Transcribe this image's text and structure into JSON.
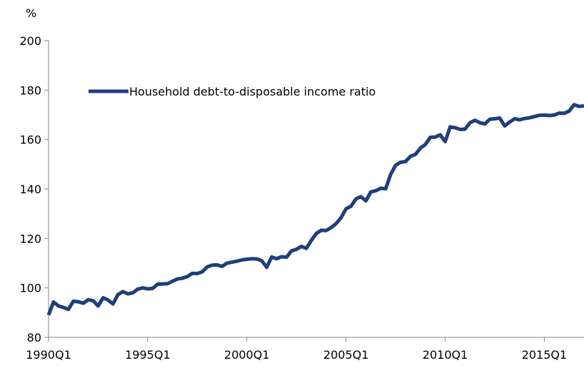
{
  "chart_data": {
    "type": "line",
    "title": "",
    "xlabel": "",
    "ylabel": "%",
    "ylim": [
      80,
      200
    ],
    "yticks": [
      80,
      100,
      120,
      140,
      160,
      180,
      200
    ],
    "x_tick_labels": [
      "1990Q1",
      "1995Q1",
      "2000Q1",
      "2005Q1",
      "2010Q1",
      "2015Q1"
    ],
    "x_tick_years": [
      1990,
      1995,
      2000,
      2005,
      2010,
      2015
    ],
    "xlim": [
      1990.0,
      2017.0
    ],
    "grid": false,
    "legend_placement": "top-left",
    "series": [
      {
        "name": "Household debt-to-disposable income ratio",
        "color": "#1f3f7a",
        "x": [
          1990.0,
          1990.25,
          1990.5,
          1990.75,
          1991.0,
          1991.25,
          1991.5,
          1991.75,
          1992.0,
          1992.25,
          1992.5,
          1992.75,
          1993.0,
          1993.25,
          1993.5,
          1993.75,
          1994.0,
          1994.25,
          1994.5,
          1994.75,
          1995.0,
          1995.25,
          1995.5,
          1995.75,
          1996.0,
          1996.25,
          1996.5,
          1996.75,
          1997.0,
          1997.25,
          1997.5,
          1997.75,
          1998.0,
          1998.25,
          1998.5,
          1998.75,
          1999.0,
          1999.25,
          1999.5,
          1999.75,
          2000.0,
          2000.25,
          2000.5,
          2000.75,
          2001.0,
          2001.25,
          2001.5,
          2001.75,
          2002.0,
          2002.25,
          2002.5,
          2002.75,
          2003.0,
          2003.25,
          2003.5,
          2003.75,
          2004.0,
          2004.25,
          2004.5,
          2004.75,
          2005.0,
          2005.25,
          2005.5,
          2005.75,
          2006.0,
          2006.25,
          2006.5,
          2006.75,
          2007.0,
          2007.25,
          2007.5,
          2007.75,
          2008.0,
          2008.25,
          2008.5,
          2008.75,
          2009.0,
          2009.25,
          2009.5,
          2009.75,
          2010.0,
          2010.25,
          2010.5,
          2010.75,
          2011.0,
          2011.25,
          2011.5,
          2011.75,
          2012.0,
          2012.25,
          2012.5,
          2012.75,
          2013.0,
          2013.25,
          2013.5,
          2013.75,
          2014.0,
          2014.25,
          2014.5,
          2014.75,
          2015.0,
          2015.25,
          2015.5,
          2015.75,
          2016.0,
          2016.25,
          2016.5,
          2016.75,
          2017.0
        ],
        "y": [
          89.0,
          94.3,
          92.7,
          92.1,
          91.3,
          94.6,
          94.4,
          93.8,
          95.2,
          94.8,
          92.7,
          96.0,
          95.1,
          93.5,
          97.3,
          98.5,
          97.6,
          98.0,
          99.5,
          100.0,
          99.6,
          99.8,
          101.5,
          101.6,
          101.7,
          102.7,
          103.6,
          103.9,
          104.6,
          105.9,
          105.8,
          106.5,
          108.5,
          109.2,
          109.3,
          108.7,
          110.0,
          110.4,
          110.8,
          111.3,
          111.6,
          111.8,
          111.7,
          111.0,
          108.3,
          112.5,
          111.8,
          112.6,
          112.4,
          115.0,
          115.6,
          116.8,
          116.0,
          119.2,
          122.0,
          123.3,
          123.2,
          124.4,
          126.0,
          128.4,
          132.0,
          133.0,
          136.0,
          136.9,
          135.2,
          138.8,
          139.3,
          140.3,
          140.1,
          145.9,
          149.6,
          150.8,
          151.1,
          153.2,
          154.0,
          156.5,
          158.0,
          160.9,
          161.0,
          161.9,
          159.2,
          165.1,
          164.8,
          164.1,
          164.2,
          166.8,
          167.8,
          166.8,
          166.3,
          168.2,
          168.4,
          168.7,
          165.5,
          167.1,
          168.4,
          168.0,
          168.5,
          168.8,
          169.3,
          169.8,
          169.9,
          169.7,
          169.9,
          170.7,
          170.6,
          171.5,
          174.1,
          173.4,
          173.6
        ]
      }
    ]
  }
}
